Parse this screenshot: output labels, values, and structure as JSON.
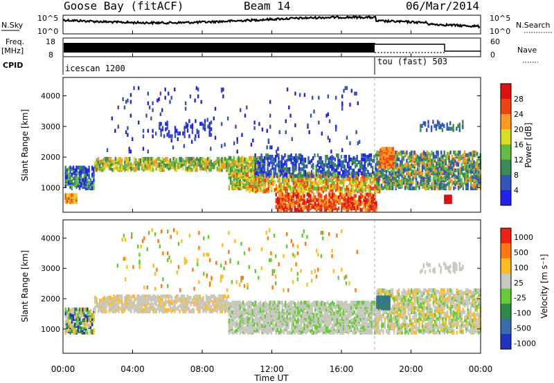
{
  "header": {
    "site": "Goose Bay (fitACF)",
    "beam": "Beam 14",
    "date": "06/Mar/2014"
  },
  "strips": {
    "nsky_label": "N.Sky",
    "nsky_ticks": [
      "10^5",
      "10^0"
    ],
    "nsearch_label": "N.Search",
    "nsearch_ticks": [
      "10^5",
      "10^0"
    ],
    "freq_label": "Freq.",
    "freq_unit": "[MHz]",
    "freq_ticks": [
      "18",
      "8"
    ],
    "nave_label": "Nave",
    "nave_ticks": [
      "60",
      "0"
    ],
    "cpid_label": "CPID",
    "cpid_segments": [
      "icescan 1200",
      "tou (fast) 503"
    ]
  },
  "chart_data": [
    {
      "type": "heatmap",
      "panel": "power",
      "ylabel": "Slant Range [km]",
      "yticks": [
        "1000",
        "2000",
        "3000",
        "4000"
      ],
      "ylim": [
        200,
        4600
      ],
      "x_range_hours": [
        0,
        24
      ],
      "colorbar_label": "Power [dB]",
      "colorbar_ticks": [
        "4",
        "8",
        "12",
        "16",
        "20",
        "24",
        "28"
      ],
      "colorbar_range": [
        0,
        32
      ],
      "colors": [
        "#2222ee",
        "#3355bb",
        "#3a8a55",
        "#66bb44",
        "#dddd22",
        "#ff9922",
        "#ee4411",
        "#dd1111"
      ]
    },
    {
      "type": "heatmap",
      "panel": "velocity",
      "ylabel": "Slant Range [km]",
      "yticks": [
        "1000",
        "2000",
        "3000",
        "4000"
      ],
      "ylim": [
        200,
        4600
      ],
      "x_range_hours": [
        0,
        24
      ],
      "colorbar_label": "Velocity [m s⁻¹]",
      "colorbar_ticks": [
        "1000",
        "500",
        "100",
        "25",
        "-25",
        "-100",
        "-500",
        "-1000"
      ],
      "colors": [
        "#2233bb",
        "#3a6ab0",
        "#2f8a4a",
        "#66cc33",
        "#c8c8c0",
        "#ffbb22",
        "#ff7711",
        "#ee2211"
      ]
    }
  ],
  "time_axis": {
    "ticks": [
      "00:00",
      "04:00",
      "08:00",
      "12:00",
      "16:00",
      "20:00",
      "00:00"
    ],
    "label": "Time UT"
  }
}
